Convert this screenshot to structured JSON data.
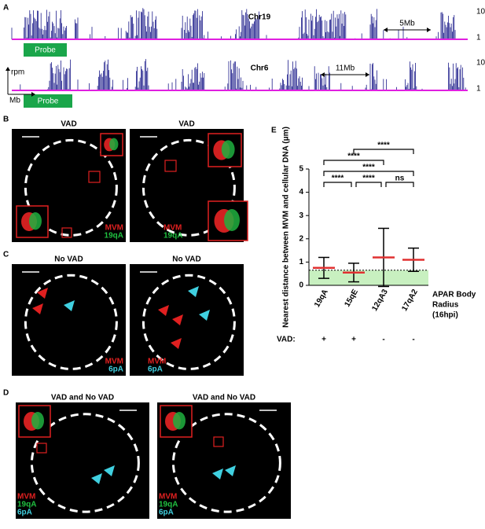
{
  "panels": {
    "A": {
      "label": "A",
      "rpm": "rpm",
      "mb": "Mb",
      "tracks": [
        {
          "name": "Chr19",
          "scale": "5Mb",
          "probe": "Probe",
          "top": "10",
          "bottom": "1"
        },
        {
          "name": "Chr6",
          "scale": "11Mb",
          "probe": "Probe",
          "top": "10",
          "bottom": "1"
        }
      ]
    },
    "B": {
      "label": "B",
      "images": [
        {
          "title": "VAD",
          "legend": [
            "MVM",
            "19qA"
          ]
        },
        {
          "title": "VAD",
          "legend": [
            "MVM",
            "19qA"
          ]
        }
      ]
    },
    "C": {
      "label": "C",
      "images": [
        {
          "title": "No VAD",
          "legend": [
            "MVM",
            "6pA"
          ]
        },
        {
          "title": "No VAD",
          "legend": [
            "MVM",
            "6pA"
          ]
        }
      ]
    },
    "D": {
      "label": "D",
      "images": [
        {
          "title": "VAD and No VAD",
          "legend": [
            "MVM",
            "19qA",
            "6pA"
          ]
        },
        {
          "title": "VAD and No VAD",
          "legend": [
            "MVM",
            "19qA",
            "6pA"
          ]
        }
      ]
    },
    "E": {
      "label": "E"
    }
  },
  "chart_data": {
    "type": "errorbar",
    "y_label": "Nearest distance between MVM and cellular DNA (μm)",
    "categories": [
      "19qA",
      "15qE",
      "12qA3",
      "17qA2"
    ],
    "values": [
      0.75,
      0.55,
      1.2,
      1.1
    ],
    "errors": [
      0.45,
      0.4,
      1.25,
      0.5
    ],
    "color": "#e03030",
    "ylim": [
      0,
      5
    ],
    "yticks": [
      0,
      1,
      2,
      3,
      4,
      5
    ],
    "threshold": 0.65,
    "threshold_label": [
      "APAR Body",
      "Radius",
      "(16hpi)"
    ],
    "row_label": "VAD:",
    "row_values": [
      "+",
      "+",
      "-",
      "-"
    ],
    "significance": [
      "****",
      "****",
      "****",
      "****",
      "****",
      "ns"
    ]
  }
}
